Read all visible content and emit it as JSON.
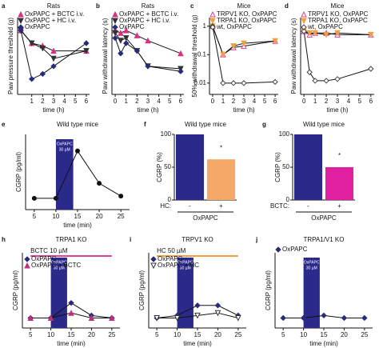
{
  "chart_data": [
    {
      "panel": "a",
      "title": "Rats",
      "type": "line",
      "ylabel": "Paw pressure threshold (g)",
      "xlabel": "time (h)",
      "x": [
        0,
        1,
        2,
        3,
        6
      ],
      "xlim": [
        -0.3,
        6.3
      ],
      "xticks": [
        1,
        2,
        3,
        4,
        5,
        6
      ],
      "ylim": [
        30,
        90
      ],
      "series": [
        {
          "name": "OxPAPC + BCTC i.v.",
          "color": "#d9307f",
          "marker": "triangle-up",
          "filled": true,
          "values": [
            80,
            70,
            68,
            64,
            64
          ]
        },
        {
          "name": "OxPAPC + HC i.v.",
          "color": "#333333",
          "marker": "triangle-down",
          "filled": true,
          "values": [
            80,
            70,
            66,
            58,
            64
          ]
        },
        {
          "name": "OxPAPC",
          "color": "#2b2a7a",
          "marker": "diamond",
          "filled": true,
          "values": [
            80,
            42,
            46,
            52,
            70
          ]
        }
      ]
    },
    {
      "panel": "b",
      "title": "Rats",
      "type": "line",
      "ylabel": "Paw withdrawal latency (s)",
      "xlabel": "time (h)",
      "x": [
        0,
        0.5,
        1,
        2,
        3,
        6
      ],
      "xlim": [
        -0.3,
        6.3
      ],
      "xticks": [
        0,
        1,
        2,
        3,
        4,
        5,
        6
      ],
      "ylim": [
        30,
        90
      ],
      "series": [
        {
          "name": "OxPAPC + BCTC i.v.",
          "color": "#d9307f",
          "marker": "triangle-up",
          "filled": true,
          "values": [
            80,
            78,
            80,
            76,
            72,
            62
          ]
        },
        {
          "name": "OxPAPC + HC i.v.",
          "color": "#333333",
          "marker": "triangle-down",
          "filled": true,
          "values": [
            78,
            72,
            74,
            64,
            52,
            50
          ]
        },
        {
          "name": "OxPAPC",
          "color": "#2b2a7a",
          "marker": "diamond",
          "filled": true,
          "values": [
            74,
            62,
            70,
            64,
            52,
            48
          ]
        }
      ]
    },
    {
      "panel": "c",
      "title": "Mice",
      "type": "line",
      "ylabel": "50% withdrawal threshold (g)",
      "xlabel": "time (h)",
      "x": [
        0,
        1,
        2,
        3,
        6
      ],
      "xlim": [
        -0.3,
        6.3
      ],
      "xticks": [
        0,
        1,
        2,
        3,
        4,
        5,
        6
      ],
      "log_y": true,
      "ylim": [
        0.004,
        2
      ],
      "yticks": [
        0.01,
        0.1,
        1
      ],
      "series": [
        {
          "name": "TRPV1 KO, OxPAPC",
          "color": "#e0409a",
          "marker": "triangle-up",
          "filled": false,
          "values": [
            1,
            0.1,
            0.18,
            0.2,
            0.3
          ]
        },
        {
          "name": "TRPA1 KO, OxPAPC",
          "color": "#f0a040",
          "marker": "triangle-down",
          "filled": true,
          "values": [
            1,
            0.1,
            0.2,
            0.25,
            0.3
          ]
        },
        {
          "name": "wt, OxPAPC",
          "color": "#444444",
          "marker": "diamond",
          "filled": false,
          "values": [
            1,
            0.01,
            0.01,
            0.01,
            0.011
          ]
        }
      ]
    },
    {
      "panel": "d",
      "title": "Mice",
      "type": "line",
      "ylabel": "Paw withdrawal latency (s)",
      "xlabel": "time (h)",
      "x": [
        0,
        0.5,
        1,
        2,
        3,
        6
      ],
      "xlim": [
        -0.3,
        6.3
      ],
      "xticks": [
        0,
        1,
        2,
        3,
        4,
        5,
        6
      ],
      "ylim": [
        10,
        100
      ],
      "series": [
        {
          "name": "TRPV1 KO, OxPAPC",
          "color": "#e0409a",
          "marker": "triangle-up",
          "filled": false,
          "values": [
            84,
            80,
            82,
            82,
            80,
            80
          ]
        },
        {
          "name": "TRPA1 KO, OxPAPC",
          "color": "#f0a040",
          "marker": "triangle-down",
          "filled": true,
          "values": [
            84,
            82,
            82,
            80,
            82,
            80
          ]
        },
        {
          "name": "wt, OxPAPC",
          "color": "#444444",
          "marker": "diamond",
          "filled": false,
          "values": [
            84,
            36,
            26,
            26,
            28,
            40
          ]
        }
      ]
    },
    {
      "panel": "e",
      "title": "Wild type mice",
      "type": "line",
      "ylabel": "CGRP (pg/ml)",
      "xlabel": "time (min)",
      "x": [
        5,
        10,
        15,
        20,
        25
      ],
      "xlim": [
        3,
        27
      ],
      "xticks": [
        5,
        10,
        15,
        20,
        25
      ],
      "ylim": [
        0,
        100
      ],
      "shade": {
        "label": [
          "OxPAPC",
          "30 µM"
        ],
        "range": [
          10,
          14
        ],
        "color": "#2b2a8a"
      },
      "series": [
        {
          "color": "#111111",
          "marker": "circle",
          "filled": true,
          "values": [
            15,
            15,
            78,
            35,
            18
          ]
        }
      ]
    },
    {
      "panel": "f",
      "title": "Wild type mice",
      "type": "bar",
      "ylabel": "CGRP (%)",
      "xlabel": "HC:",
      "categories": [
        "-",
        "+"
      ],
      "group_label": "OxPAPC",
      "ylim": [
        0,
        100
      ],
      "yticks": [
        0,
        50,
        100
      ],
      "values": [
        100,
        62
      ],
      "colors": [
        "#2b2a8a",
        "#f5a868"
      ],
      "annotation": "*"
    },
    {
      "panel": "g",
      "title": "Wild type mice",
      "type": "bar",
      "ylabel": "CGRP (%)",
      "xlabel": "BCTC:",
      "categories": [
        "-",
        "+"
      ],
      "group_label": "OxPAPC",
      "ylim": [
        0,
        100
      ],
      "yticks": [
        0,
        50,
        100
      ],
      "values": [
        100,
        50
      ],
      "colors": [
        "#2b2a8a",
        "#e020a0"
      ],
      "annotation": "*"
    },
    {
      "panel": "h",
      "title": "TRPA1 KO",
      "type": "line",
      "ylabel": "CGRP (pg/ml)",
      "xlabel": "time (min)",
      "x": [
        5,
        10,
        15,
        20,
        25
      ],
      "xlim": [
        3,
        27
      ],
      "xticks": [
        5,
        10,
        15,
        20,
        25
      ],
      "ylim": [
        0,
        60
      ],
      "shade": {
        "label": [
          "OxPAPC",
          "30 µM"
        ],
        "range": [
          10,
          14
        ],
        "color": "#2b2a8a"
      },
      "bar_label": {
        "label": "BCTC 10 µM",
        "range": [
          5,
          25
        ],
        "color": "#e0409a"
      },
      "series": [
        {
          "name": "OxPAPC",
          "color": "#2b2a7a",
          "marker": "diamond",
          "filled": true,
          "values": [
            8,
            8,
            20,
            10,
            8
          ]
        },
        {
          "name": "OxPAPC + BCTC",
          "color": "#c0307a",
          "marker": "triangle-up",
          "filled": true,
          "values": [
            8,
            8,
            12,
            8,
            8
          ]
        }
      ]
    },
    {
      "panel": "i",
      "title": "TRPV1 KO",
      "type": "line",
      "ylabel": "CGRP (pg/ml)",
      "xlabel": "time (min)",
      "x": [
        5,
        10,
        15,
        20,
        25
      ],
      "xlim": [
        3,
        27
      ],
      "xticks": [
        5,
        10,
        15,
        20,
        25
      ],
      "ylim": [
        0,
        60
      ],
      "shade": {
        "label": [
          "OxPAPC",
          "30 µM"
        ],
        "range": [
          10,
          14
        ],
        "color": "#2b2a8a"
      },
      "bar_label": {
        "label": "HC 50 µM",
        "range": [
          5,
          25
        ],
        "color": "#f0a040"
      },
      "series": [
        {
          "name": "OxPAPC",
          "color": "#2b2a7a",
          "marker": "diamond",
          "filled": true,
          "values": [
            8,
            10,
            18,
            18,
            10
          ]
        },
        {
          "name": "OxPAPC + HC",
          "color": "#333333",
          "marker": "triangle-down",
          "filled": false,
          "values": [
            8,
            8,
            10,
            12,
            8
          ]
        }
      ]
    },
    {
      "panel": "j",
      "title": "TRPA1/V1 KO",
      "type": "line",
      "ylabel": "CGRP (pg/ml)",
      "xlabel": "time (min)",
      "x": [
        5,
        10,
        15,
        20,
        25
      ],
      "xlim": [
        3,
        27
      ],
      "xticks": [
        5,
        10,
        15,
        20,
        25
      ],
      "ylim": [
        0,
        60
      ],
      "shade": {
        "label": [
          "OxPAPC",
          "30 µM"
        ],
        "range": [
          10,
          14
        ],
        "color": "#2b2a8a"
      },
      "series": [
        {
          "name": "OxPAPC",
          "color": "#2b2a7a",
          "marker": "diamond",
          "filled": true,
          "values": [
            8,
            8,
            10,
            8,
            8
          ]
        }
      ]
    }
  ]
}
